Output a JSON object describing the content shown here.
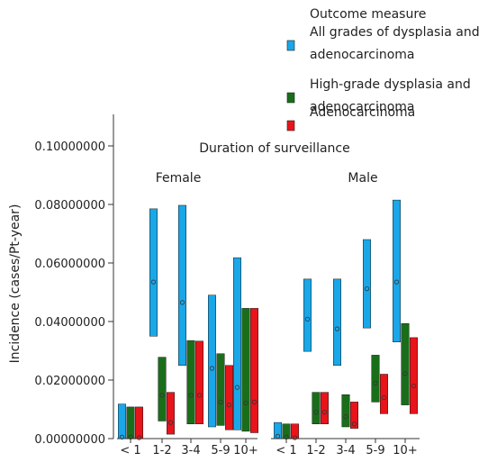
{
  "chart_data": {
    "type": "range_bar",
    "ylabel": "Incidence (cases/Pt-year)",
    "ylim": [
      0,
      0.1
    ],
    "yticks": [
      0,
      0.02,
      0.04,
      0.06,
      0.08,
      0.1
    ],
    "ytick_labels": [
      "0.00000000",
      "0.02000000",
      "0.04000000",
      "0.06000000",
      "0.08000000",
      "0.10000000"
    ],
    "grid": false,
    "legend": {
      "title": "Outcome measure",
      "placement": "top-right",
      "entries": [
        {
          "label_lines": [
            "All grades of dysplasia and",
            "adenocarcinoma"
          ],
          "color": "#1aa7e8"
        },
        {
          "label_lines": [
            "High-grade dysplasia and",
            "adenocarcinoma"
          ],
          "color": "#1a6e1a"
        },
        {
          "label_lines": [
            "Adenocarcinoma"
          ],
          "color": "#e8141a"
        }
      ]
    },
    "facet_title": "Duration of surveillance",
    "categories": [
      "< 1",
      "1-2",
      "3-4",
      "5-9",
      "10+"
    ],
    "panels": [
      {
        "name": "Female",
        "series": [
          {
            "name": "All grades of dysplasia and adenocarcinoma",
            "color": "#1aa7e8",
            "low": [
              0.0,
              0.035,
              0.025,
              0.004,
              0.003
            ],
            "high": [
              0.0118,
              0.0785,
              0.0797,
              0.049,
              0.0618
            ],
            "point": [
              0.0005,
              0.0535,
              0.0465,
              0.024,
              0.0175
            ]
          },
          {
            "name": "High-grade dysplasia and adenocarcinoma",
            "color": "#1a6e1a",
            "low": [
              0.0,
              0.006,
              0.005,
              0.0045,
              0.0025
            ],
            "high": [
              0.0108,
              0.0278,
              0.0335,
              0.029,
              0.0445
            ],
            "point": [
              0.0005,
              0.0148,
              0.0148,
              0.0125,
              0.0122
            ]
          },
          {
            "name": "Adenocarcinoma",
            "color": "#e8141a",
            "low": [
              0.0,
              0.0015,
              0.005,
              0.003,
              0.002
            ],
            "high": [
              0.0108,
              0.0158,
              0.0333,
              0.025,
              0.0445
            ],
            "point": [
              0.0003,
              0.0055,
              0.0148,
              0.0115,
              0.0125
            ]
          }
        ]
      },
      {
        "name": "Male",
        "series": [
          {
            "name": "All grades of dysplasia and adenocarcinoma",
            "color": "#1aa7e8",
            "low": [
              0.0,
              0.0298,
              0.025,
              0.0378,
              0.033
            ],
            "high": [
              0.0055,
              0.0545,
              0.0545,
              0.068,
              0.0815
            ],
            "point": [
              0.0008,
              0.0408,
              0.0375,
              0.0512,
              0.0535
            ]
          },
          {
            "name": "High-grade dysplasia and adenocarcinoma",
            "color": "#1a6e1a",
            "low": [
              0.0,
              0.005,
              0.004,
              0.0125,
              0.0115
            ],
            "high": [
              0.005,
              0.0158,
              0.015,
              0.0285,
              0.0393
            ],
            "point": [
              0.0005,
              0.009,
              0.0075,
              0.019,
              0.0222
            ]
          },
          {
            "name": "Adenocarcinoma",
            "color": "#e8141a",
            "low": [
              0.0,
              0.005,
              0.0035,
              0.0085,
              0.0085
            ],
            "high": [
              0.005,
              0.0158,
              0.0125,
              0.022,
              0.0345
            ],
            "point": [
              0.0003,
              0.009,
              0.005,
              0.014,
              0.018
            ]
          }
        ]
      }
    ]
  }
}
